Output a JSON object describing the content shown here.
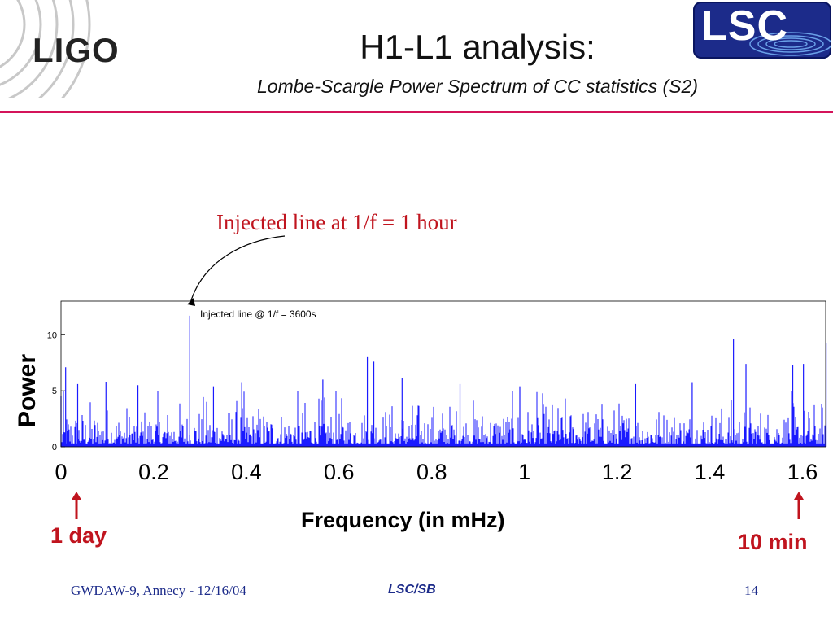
{
  "slide": {
    "logo_left": "LIGO",
    "logo_right": "LSC",
    "title": "H1-L1 analysis:",
    "subtitle": "Lombe-Scargle Power Spectrum of CC statistics  (S2)",
    "annotation": "Injected line at 1/f = 1 hour",
    "marker_day": "1 day",
    "marker_min": "10 min",
    "colors": {
      "accent_rule": "#d4145a",
      "annotation": "#c0141e",
      "footer": "#1c2b8a",
      "series": "#1a1aff"
    }
  },
  "footer": {
    "left": "GWDAW-9, Annecy - 12/16/04",
    "center": "LSC/SB",
    "right": "14"
  },
  "chart_data": {
    "type": "line",
    "title": "",
    "xlabel": "Frequency (in mHz)",
    "ylabel": "Power",
    "xlim": [
      0,
      1.65
    ],
    "ylim": [
      0,
      13
    ],
    "x_ticks": [
      "0",
      "0.2",
      "0.4",
      "0.6",
      "0.8",
      "1",
      "1.2",
      "1.4",
      "1.6"
    ],
    "y_ticks": [
      "0",
      "5",
      "10"
    ],
    "inner_annotation": "Injected line @ 1/f = 3600s",
    "grid": false,
    "series": [
      {
        "color": "#1a1aff",
        "peaks": [
          {
            "x": 0.0,
            "y": 4.5
          },
          {
            "x": 0.01,
            "y": 7.1
          },
          {
            "x": 0.036,
            "y": 5.6
          },
          {
            "x": 0.097,
            "y": 5.8
          },
          {
            "x": 0.166,
            "y": 5.5
          },
          {
            "x": 0.2778,
            "y": 11.7
          },
          {
            "x": 0.329,
            "y": 5.4
          },
          {
            "x": 0.39,
            "y": 5.7
          },
          {
            "x": 0.565,
            "y": 6.0
          },
          {
            "x": 0.661,
            "y": 8.0
          },
          {
            "x": 0.675,
            "y": 7.6
          },
          {
            "x": 0.736,
            "y": 6.1
          },
          {
            "x": 0.861,
            "y": 5.6
          },
          {
            "x": 0.99,
            "y": 5.4
          },
          {
            "x": 1.24,
            "y": 5.6
          },
          {
            "x": 1.362,
            "y": 5.7
          },
          {
            "x": 1.451,
            "y": 9.6
          },
          {
            "x": 1.478,
            "y": 7.4
          },
          {
            "x": 1.579,
            "y": 7.3
          },
          {
            "x": 1.602,
            "y": 7.4
          },
          {
            "x": 1.651,
            "y": 9.3
          }
        ],
        "background_mean": 2.1
      }
    ]
  }
}
